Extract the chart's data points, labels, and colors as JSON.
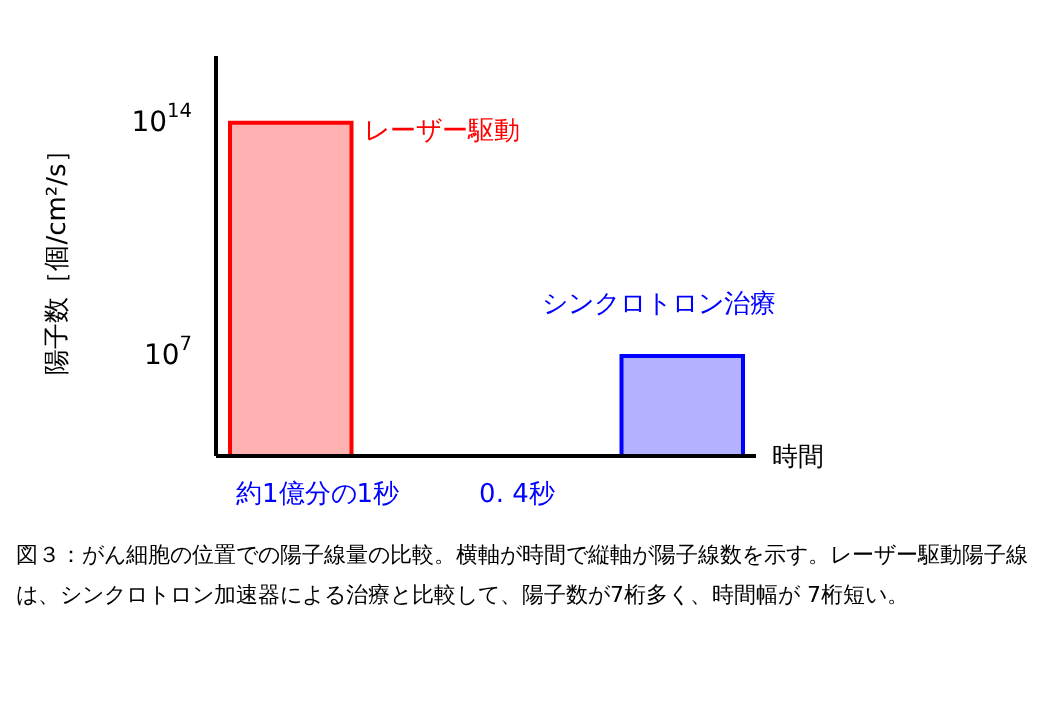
{
  "chart_data": {
    "type": "bar",
    "xlabel": "時間",
    "ylabel": "陽子数［個/cm²/s］",
    "categories": [
      null,
      null
    ],
    "series": [
      {
        "name": "レーザー駆動",
        "color": "#ff0000",
        "values": [
          100000000000000,
          null
        ]
      },
      {
        "name": "シンクロトロン治療",
        "color": "#0000ff",
        "values": [
          null,
          10000000
        ]
      }
    ],
    "log": true,
    "ylim": [
      10000,
      10000000000000000
    ],
    "yticks": [
      {
        "value": 10000000,
        "label": "10$^{7}$"
      },
      {
        "value": 100000000000000,
        "label": "10$^{14}$"
      }
    ],
    "annotations": [
      "約1億分の1秒",
      "0. 4秒",
      "図３：がん細胞の位置での陽子線量の比較。横軸が時間で縦軸が陽子線数を示す。レーザー駆動陽子線は、シンクロトロン加速器による治療と比較して、陽子数が7桁多く、時間幅が 7桁短い。"
    ]
  }
}
